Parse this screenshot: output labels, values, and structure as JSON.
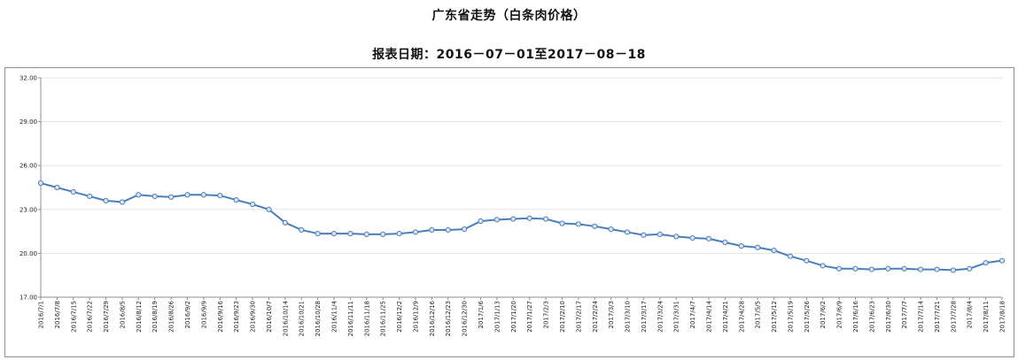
{
  "chart_data": {
    "type": "line",
    "title": "广东省走势（白条肉价格）",
    "subtitle": "报表日期：2016－07－01至2017－08－18",
    "ylim": [
      17,
      32
    ],
    "yticks": [
      "17.00",
      "20.00",
      "23.00",
      "26.00",
      "29.00",
      "32.00"
    ],
    "ytick_values": [
      17,
      20,
      23,
      26,
      29,
      32
    ],
    "grid": true,
    "legend": "none",
    "line_color": "#4a7ebb",
    "marker_fill": "#dbe6f4",
    "categories": [
      "2016/7/1",
      "2016/7/8",
      "2016/7/15",
      "2016/7/22",
      "2016/7/29",
      "2016/8/5",
      "2016/8/12",
      "2016/8/19",
      "2016/8/26",
      "2016/9/2",
      "2016/9/9",
      "2016/9/16",
      "2016/9/23",
      "2016/9/30",
      "2016/10/7",
      "2016/10/14",
      "2016/10/21",
      "2016/10/28",
      "2016/11/4",
      "2016/11/11",
      "2016/11/18",
      "2016/11/25",
      "2016/12/2",
      "2016/12/9",
      "2016/12/16",
      "2016/12/23",
      "2016/12/30",
      "2017/1/6",
      "2017/1/13",
      "2017/1/20",
      "2017/1/27",
      "2017/2/3",
      "2017/2/10",
      "2017/2/17",
      "2017/2/24",
      "2017/3/3",
      "2017/3/10",
      "2017/3/17",
      "2017/3/24",
      "2017/3/31",
      "2017/4/7",
      "2017/4/14",
      "2017/4/21",
      "2017/4/28",
      "2017/5/5",
      "2017/5/12",
      "2017/5/19",
      "2017/5/26",
      "2017/6/2",
      "2017/6/9",
      "2017/6/16",
      "2017/6/23",
      "2017/6/30",
      "2017/7/7",
      "2017/7/14",
      "2017/7/21",
      "2017/7/28",
      "2017/8/4",
      "2017/8/11",
      "2017/8/18"
    ],
    "series": [
      {
        "values": [
          24.8,
          24.5,
          24.2,
          23.9,
          23.6,
          23.5,
          24.0,
          23.9,
          23.85,
          24.0,
          24.0,
          23.95,
          23.65,
          23.35,
          23.0,
          22.1,
          21.6,
          21.35,
          21.35,
          21.35,
          21.3,
          21.3,
          21.35,
          21.45,
          21.6,
          21.6,
          21.65,
          22.2,
          22.3,
          22.35,
          22.4,
          22.35,
          22.05,
          22.0,
          21.85,
          21.65,
          21.45,
          21.25,
          21.3,
          21.15,
          21.05,
          21.0,
          20.75,
          20.5,
          20.4,
          20.2,
          19.8,
          19.5,
          19.15,
          18.95,
          18.95,
          18.9,
          18.95,
          18.95,
          18.9,
          18.9,
          18.85,
          18.95,
          19.35,
          19.5
        ]
      }
    ]
  }
}
